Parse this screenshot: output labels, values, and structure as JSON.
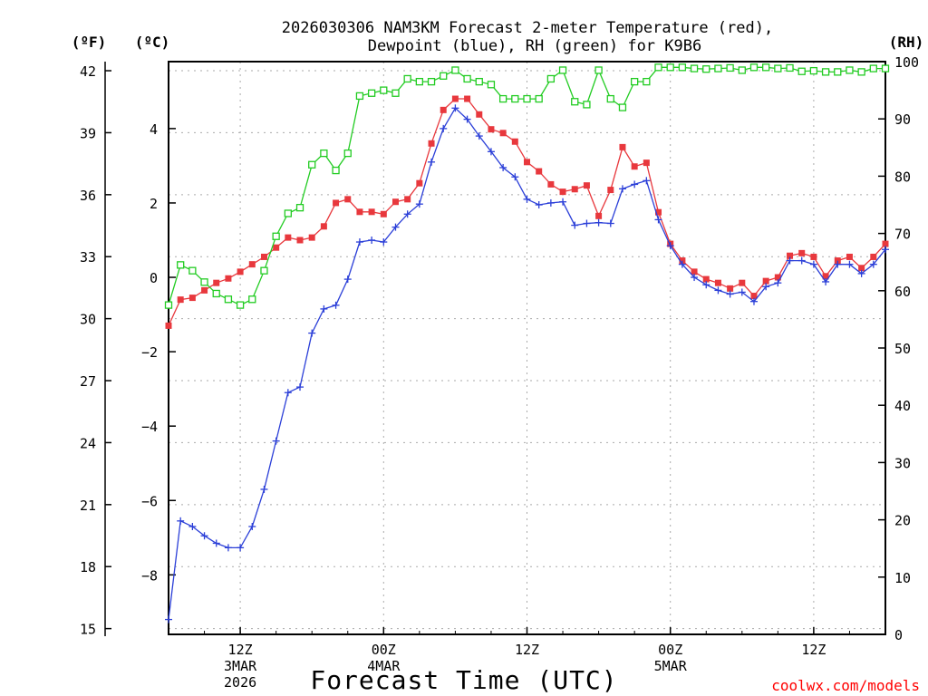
{
  "chart_data": {
    "type": "line",
    "title_line1": "2026030306 NAM3KM Forecast 2-meter Temperature (red),",
    "title_line2": "Dewpoint (blue), RH (green) for K9B6",
    "unit_f": "(ºF)",
    "unit_c": "(ºC)",
    "unit_rh": "(RH)",
    "xlabel": "Forecast Time (UTC)",
    "credit": "coolwx.com/models",
    "f_ticks": [
      "15",
      "18",
      "21",
      "24",
      "27",
      "30",
      "33",
      "36",
      "39",
      "42"
    ],
    "c_ticks": [
      "-8",
      "-6",
      "-4",
      "-2",
      "0",
      "2",
      "4"
    ],
    "rh_ticks": [
      "0",
      "10",
      "20",
      "30",
      "40",
      "50",
      "60",
      "70",
      "80",
      "90",
      "100"
    ],
    "x_ticks": [
      {
        "h": 6,
        "l1": "12Z",
        "l2": "3MAR",
        "l3": "2026"
      },
      {
        "h": 18,
        "l1": "00Z",
        "l2": "4MAR",
        "l3": ""
      },
      {
        "h": 30,
        "l1": "12Z",
        "l2": "",
        "l3": ""
      },
      {
        "h": 42,
        "l1": "00Z",
        "l2": "5MAR",
        "l3": ""
      },
      {
        "h": 54,
        "l1": "12Z",
        "l2": "",
        "l3": ""
      }
    ],
    "x_range_hours": [
      0,
      60
    ],
    "c_range": [
      -9.6,
      5.8
    ],
    "rh_range": [
      0,
      100
    ],
    "series": [
      {
        "name": "Temperature",
        "units": "C",
        "color": "#e8383d",
        "marker": "filled-square",
        "values": [
          -1.3,
          -0.6,
          -0.55,
          -0.35,
          -0.15,
          -0.03,
          0.15,
          0.35,
          0.55,
          0.8,
          1.07,
          1.0,
          1.07,
          1.37,
          2.0,
          2.1,
          1.76,
          1.76,
          1.7,
          2.03,
          2.1,
          2.53,
          3.6,
          4.5,
          4.8,
          4.8,
          4.38,
          3.98,
          3.88,
          3.65,
          3.1,
          2.85,
          2.5,
          2.3,
          2.37,
          2.47,
          1.65,
          2.35,
          3.5,
          2.98,
          3.08,
          1.75,
          0.9,
          0.45,
          0.15,
          -0.05,
          -0.15,
          -0.3,
          -0.15,
          -0.5,
          -0.1,
          0.0,
          0.58,
          0.65,
          0.55,
          0.03,
          0.45,
          0.55,
          0.25,
          0.55,
          0.9
        ]
      },
      {
        "name": "Dewpoint",
        "units": "C",
        "color": "#2b3fd8",
        "marker": "plus",
        "values": [
          -9.2,
          -6.55,
          -6.7,
          -6.95,
          -7.15,
          -7.27,
          -7.27,
          -6.7,
          -5.7,
          -4.4,
          -3.1,
          -2.95,
          -1.5,
          -0.85,
          -0.75,
          -0.05,
          0.95,
          1.0,
          0.95,
          1.35,
          1.7,
          1.97,
          3.1,
          4.0,
          4.55,
          4.25,
          3.8,
          3.38,
          2.95,
          2.7,
          2.1,
          1.95,
          2.0,
          2.03,
          1.4,
          1.45,
          1.47,
          1.45,
          2.38,
          2.5,
          2.6,
          1.55,
          0.85,
          0.35,
          0.0,
          -0.2,
          -0.35,
          -0.45,
          -0.4,
          -0.65,
          -0.25,
          -0.15,
          0.45,
          0.45,
          0.35,
          -0.12,
          0.35,
          0.35,
          0.1,
          0.35,
          0.75
        ]
      },
      {
        "name": "RH",
        "units": "%",
        "color": "#22cc22",
        "marker": "open-square",
        "values": [
          57.5,
          64.5,
          63.5,
          61.5,
          59.5,
          58.5,
          57.5,
          58.5,
          63.5,
          69.5,
          73.5,
          74.5,
          82,
          84,
          81,
          84,
          94,
          94.5,
          95,
          94.5,
          97,
          96.5,
          96.5,
          97.5,
          98.5,
          97,
          96.5,
          96,
          93.5,
          93.5,
          93.5,
          93.5,
          97,
          98.5,
          93,
          92.5,
          98.5,
          93.5,
          92,
          96.5,
          96.5,
          99,
          99,
          99,
          98.8,
          98.7,
          98.8,
          98.9,
          98.5,
          99,
          99,
          98.8,
          98.9,
          98.3,
          98.4,
          98.2,
          98.2,
          98.5,
          98.2,
          98.8,
          98.8
        ]
      }
    ]
  }
}
